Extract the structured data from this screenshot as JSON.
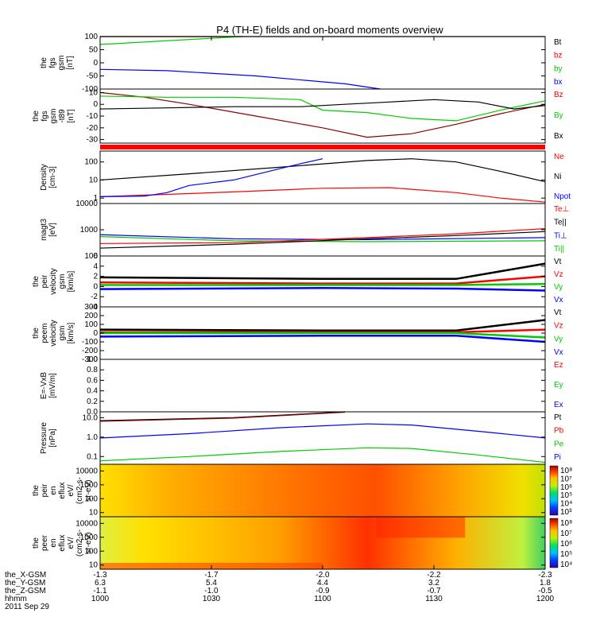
{
  "chart_data": {
    "type": "line",
    "title": "P4 (TH-E) fields and on-board moments overview",
    "date_label": "2011 Sep 29",
    "x_ticks": [
      "1000",
      "1030",
      "1100",
      "1130",
      "1200"
    ],
    "footer_rows": [
      {
        "name": "the_X-GSM",
        "values": [
          "-1.3",
          "-1.7",
          "-2.0",
          "-2.2",
          "-2.3"
        ]
      },
      {
        "name": "the_Y-GSM",
        "values": [
          "6.3",
          "5.4",
          "4.4",
          "3.2",
          "1.8"
        ]
      },
      {
        "name": "the_Z-GSM",
        "values": [
          "-1.1",
          "-1.0",
          "-0.9",
          "-0.7",
          "-0.5"
        ]
      },
      {
        "name": "hhmm",
        "values": [
          "1000",
          "1030",
          "1100",
          "1130",
          "1200"
        ]
      }
    ],
    "colorbar_ticks_1": [
      "10⁸",
      "10⁷",
      "10⁶",
      "10⁵",
      "10⁴",
      "10³"
    ],
    "colorbar_ticks_2": [
      "10⁸",
      "10⁷",
      "10⁶",
      "10⁵",
      "10⁴"
    ],
    "panels": [
      {
        "id": "p1",
        "ylabel": [
          "the",
          "fgs",
          "gsm",
          "[nT]"
        ],
        "ylim": [
          -100,
          100
        ],
        "log": false,
        "yticks": [
          "100",
          "50",
          "0",
          "-50",
          "-100"
        ],
        "legend": [
          {
            "name": "Bt",
            "color": "#000000"
          },
          {
            "name": "bz",
            "color": "#ff0000"
          },
          {
            "name": "by",
            "color": "#00cc00"
          },
          {
            "name": "bx",
            "color": "#0000ff"
          }
        ],
        "series": [
          {
            "name": "Bt",
            "color": "#000000",
            "x": [
              0,
              1
            ],
            "y": [
              103,
              103
            ]
          },
          {
            "name": "bz",
            "color": "#ff0000",
            "x": [
              0,
              0.32
            ],
            "y": [
              100,
              100
            ]
          },
          {
            "name": "by",
            "color": "#00cc00",
            "x": [
              0,
              0.32
            ],
            "y": [
              70,
              100
            ]
          },
          {
            "name": "bx",
            "color": "#0000ff",
            "x": [
              0,
              0.15,
              0.35,
              0.55,
              0.63
            ],
            "y": [
              -25,
              -30,
              -50,
              -80,
              -100
            ]
          }
        ]
      },
      {
        "id": "p2",
        "ylabel": [
          "the",
          "fgs",
          "gsm",
          "-t89",
          "[nT]"
        ],
        "ylim": [
          -33,
          13
        ],
        "log": false,
        "yticks": [
          "10",
          "0",
          "-10",
          "-20",
          "-30"
        ],
        "legend": [
          {
            "name": "Bz",
            "color": "#ff0000"
          },
          {
            "name": "By",
            "color": "#00cc00"
          },
          {
            "name": "Bx",
            "color": "#000000"
          }
        ],
        "series": [
          {
            "name": "Bz",
            "color": "#8b0000",
            "x": [
              0,
              0.1,
              0.2,
              0.35,
              0.5,
              0.6,
              0.7,
              0.8,
              0.9,
              1
            ],
            "y": [
              10,
              6,
              0,
              -10,
              -20,
              -28,
              -25,
              -17,
              -8,
              0
            ]
          },
          {
            "name": "By",
            "color": "#00cc00",
            "x": [
              0,
              0.15,
              0.3,
              0.45,
              0.5,
              0.6,
              0.7,
              0.8,
              0.9,
              1
            ],
            "y": [
              7,
              6,
              6,
              4,
              -5,
              -7,
              -12,
              -14,
              -5,
              3
            ]
          },
          {
            "name": "Bx",
            "color": "#000000",
            "x": [
              0,
              0.15,
              0.3,
              0.45,
              0.55,
              0.65,
              0.75,
              0.85,
              0.93,
              1
            ],
            "y": [
              -4,
              -3,
              -2,
              -2,
              0,
              2,
              4,
              2,
              -4,
              -1
            ]
          }
        ]
      },
      {
        "id": "p3",
        "ylabel": [
          "Density",
          "[cm-3]"
        ],
        "ylim": [
          0.5,
          400
        ],
        "log": true,
        "yticks": [
          "100",
          "10",
          "1"
        ],
        "ytick_values": [
          100,
          10,
          1
        ],
        "legend": [
          {
            "name": "Ne",
            "color": "#ff0000"
          },
          {
            "name": "Ni",
            "color": "#000000"
          },
          {
            "name": "Npot",
            "color": "#0000ff"
          }
        ],
        "series": [
          {
            "name": "Ni",
            "color": "#000000",
            "x": [
              0,
              0.2,
              0.4,
              0.6,
              0.7,
              0.8,
              0.9,
              1
            ],
            "y": [
              10,
              22,
              50,
              120,
              150,
              100,
              30,
              8
            ]
          },
          {
            "name": "Ne",
            "color": "#ff0000",
            "x": [
              0,
              0.15,
              0.3,
              0.5,
              0.65,
              0.8,
              0.9,
              1
            ],
            "y": [
              1.2,
              1.6,
              2.2,
              3.5,
              3.8,
              2,
              1,
              0.6
            ]
          },
          {
            "name": "Npot",
            "color": "#0000ff",
            "x": [
              0,
              0.1,
              0.15,
              0.2,
              0.3,
              0.4,
              0.45,
              0.5
            ],
            "y": [
              1.2,
              1.3,
              2,
              5,
              10,
              40,
              80,
              150
            ]
          }
        ]
      },
      {
        "id": "p4",
        "ylabel": [
          "magt3",
          "[eV]"
        ],
        "ylim": [
          100,
          10000
        ],
        "log": true,
        "yticks": [
          "10000",
          "1000",
          "100"
        ],
        "ytick_values": [
          10000,
          1000,
          100
        ],
        "legend": [
          {
            "name": "Te⊥",
            "color": "#ff0000"
          },
          {
            "name": "Te||",
            "color": "#000000"
          },
          {
            "name": "Ti⊥",
            "color": "#0000ff"
          },
          {
            "name": "Ti||",
            "color": "#00cc00"
          }
        ],
        "series": [
          {
            "name": "Ti⊥",
            "color": "#0000ff",
            "x": [
              0,
              0.3,
              0.6,
              1
            ],
            "y": [
              650,
              450,
              420,
              500
            ]
          },
          {
            "name": "Ti||",
            "color": "#00cc00",
            "x": [
              0,
              0.3,
              0.6,
              1
            ],
            "y": [
              550,
              380,
              350,
              380
            ]
          },
          {
            "name": "Te||",
            "color": "#000000",
            "x": [
              0,
              0.3,
              0.6,
              0.8,
              1
            ],
            "y": [
              200,
              280,
              450,
              600,
              850
            ]
          },
          {
            "name": "Te⊥",
            "color": "#ff0000",
            "x": [
              0,
              0.3,
              0.6,
              0.8,
              1
            ],
            "y": [
              300,
              320,
              500,
              700,
              1100
            ]
          }
        ]
      },
      {
        "id": "p5",
        "ylabel": [
          "the",
          "peir",
          "velocity",
          "gsm",
          "[km/s]"
        ],
        "ylim": [
          -4,
          6
        ],
        "log": false,
        "yticks": [
          "6",
          "4",
          "2",
          "0",
          "-2",
          "-4"
        ],
        "legend": [
          {
            "name": "Vt",
            "color": "#000000"
          },
          {
            "name": "Vz",
            "color": "#ff0000"
          },
          {
            "name": "Vy",
            "color": "#00cc00"
          },
          {
            "name": "Vx",
            "color": "#0000ff"
          }
        ],
        "series": [
          {
            "name": "Vt",
            "color": "#000000",
            "x": [
              0,
              0.5,
              0.8,
              1
            ],
            "y": [
              1.8,
              1.5,
              1.5,
              4.5
            ]
          },
          {
            "name": "Vz",
            "color": "#ff0000",
            "x": [
              0,
              0.5,
              0.8,
              1
            ],
            "y": [
              0.8,
              0.6,
              0.6,
              2
            ]
          },
          {
            "name": "Vy",
            "color": "#00cc00",
            "x": [
              0,
              0.5,
              0.8,
              1
            ],
            "y": [
              0.3,
              0.3,
              0.3,
              0.5
            ]
          },
          {
            "name": "Vx",
            "color": "#0000ff",
            "x": [
              0,
              0.5,
              0.8,
              1
            ],
            "y": [
              -0.5,
              -0.3,
              -0.4,
              -0.8
            ]
          }
        ]
      },
      {
        "id": "p6",
        "ylabel": [
          "the",
          "peem",
          "velocity",
          "gsm",
          "[km/s]"
        ],
        "ylim": [
          -300,
          300
        ],
        "log": false,
        "yticks": [
          "300",
          "200",
          "100",
          "0",
          "-100",
          "-200",
          "-300"
        ],
        "legend": [
          {
            "name": "Vt",
            "color": "#000000"
          },
          {
            "name": "Vz",
            "color": "#ff0000"
          },
          {
            "name": "Vy",
            "color": "#00cc00"
          },
          {
            "name": "Vx",
            "color": "#0000ff"
          }
        ],
        "series": [
          {
            "name": "Vt",
            "color": "#000000",
            "x": [
              0,
              0.5,
              0.8,
              1
            ],
            "y": [
              40,
              30,
              30,
              150
            ]
          },
          {
            "name": "Vz",
            "color": "#ff0000",
            "x": [
              0,
              0.5,
              0.8,
              1
            ],
            "y": [
              10,
              10,
              10,
              40
            ]
          },
          {
            "name": "Vy",
            "color": "#00cc00",
            "x": [
              0,
              0.5,
              0.8,
              1
            ],
            "y": [
              0,
              0,
              0,
              -50
            ]
          },
          {
            "name": "Vx",
            "color": "#0000ff",
            "x": [
              0,
              0.5,
              0.8,
              1
            ],
            "y": [
              -40,
              -30,
              -30,
              -100
            ]
          }
        ]
      },
      {
        "id": "p7",
        "ylabel": [
          "E=-VxB",
          "[mV/m]"
        ],
        "ylim": [
          0,
          1
        ],
        "log": false,
        "yticks": [
          "1.0",
          "0.8",
          "0.6",
          "0.4",
          "0.2",
          "0.0"
        ],
        "legend": [
          {
            "name": "Ez",
            "color": "#ff0000"
          },
          {
            "name": "Ey",
            "color": "#00cc00"
          },
          {
            "name": "Ex",
            "color": "#0000ff"
          }
        ],
        "series": []
      },
      {
        "id": "p8",
        "ylabel": [
          "Pressure",
          "[nPa]"
        ],
        "ylim": [
          0.04,
          20
        ],
        "log": true,
        "yticks": [
          "10.0",
          "1.0",
          "0.1"
        ],
        "ytick_values": [
          10,
          1,
          0.1
        ],
        "legend": [
          {
            "name": "Pt",
            "color": "#000000"
          },
          {
            "name": "Pb",
            "color": "#ff0000"
          },
          {
            "name": "Pe",
            "color": "#00cc00"
          },
          {
            "name": "Pi",
            "color": "#0000ff"
          }
        ],
        "series": [
          {
            "name": "Pt",
            "color": "#000000",
            "x": [
              0,
              0.3,
              0.55
            ],
            "y": [
              7,
              10,
              20
            ]
          },
          {
            "name": "Pb",
            "color": "#8b0000",
            "x": [
              0,
              0.3,
              0.55
            ],
            "y": [
              6.5,
              9.5,
              19
            ]
          },
          {
            "name": "Pi",
            "color": "#0000ff",
            "x": [
              0,
              0.2,
              0.4,
              0.6,
              0.7,
              0.85,
              1
            ],
            "y": [
              0.9,
              1.5,
              3,
              4.8,
              4.2,
              2,
              0.9
            ]
          },
          {
            "name": "Pe",
            "color": "#00cc00",
            "x": [
              0,
              0.2,
              0.4,
              0.6,
              0.7,
              0.85,
              1
            ],
            "y": [
              0.06,
              0.1,
              0.18,
              0.28,
              0.26,
              0.12,
              0.05
            ]
          }
        ]
      },
      {
        "id": "p9",
        "ylabel": [
          "the",
          "peir",
          "en",
          "eflux",
          "eV/",
          "(cm2-s-",
          "sr-eV)"
        ],
        "ylim": [
          5,
          30000
        ],
        "log": true,
        "yticks": [
          "10000",
          "1000",
          "100",
          "10"
        ],
        "ytick_values": [
          10000,
          1000,
          100,
          10
        ],
        "spectrogram": true,
        "legend": [],
        "series": []
      },
      {
        "id": "p10",
        "ylabel": [
          "the",
          "peer",
          "en",
          "eflux",
          "eV/",
          "(cm2-s-",
          "sr-eV)"
        ],
        "ylim": [
          5,
          30000
        ],
        "log": true,
        "yticks": [
          "10000",
          "1000",
          "100",
          "10"
        ],
        "ytick_values": [
          10000,
          1000,
          100,
          10
        ],
        "spectrogram": true,
        "legend": [],
        "series": []
      }
    ]
  }
}
